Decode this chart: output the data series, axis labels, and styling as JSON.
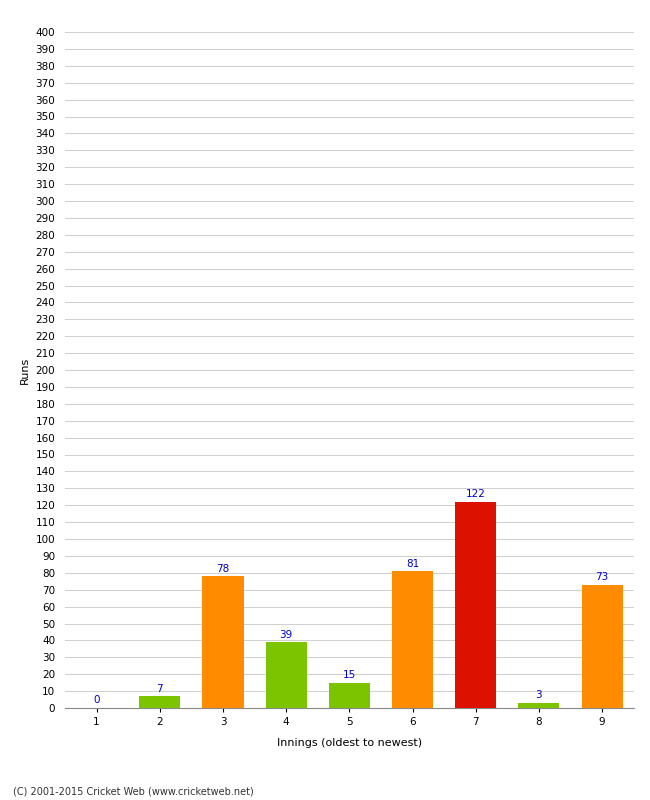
{
  "innings": [
    1,
    2,
    3,
    4,
    5,
    6,
    7,
    8,
    9
  ],
  "values": [
    0,
    7,
    78,
    39,
    15,
    81,
    122,
    3,
    73
  ],
  "bar_colors": [
    "#ff8c00",
    "#7dc400",
    "#ff8c00",
    "#7dc400",
    "#7dc400",
    "#ff8c00",
    "#dd1100",
    "#7dc400",
    "#ff8c00"
  ],
  "xlabel": "Innings (oldest to newest)",
  "ylabel": "Runs",
  "ylim": [
    0,
    400
  ],
  "ytick_step": 10,
  "label_color": "#0000cc",
  "background_color": "#ffffff",
  "grid_color": "#c8c8c8",
  "footer": "(C) 2001-2015 Cricket Web (www.cricketweb.net)",
  "bar_width": 0.65,
  "label_fontsize": 7.5,
  "tick_fontsize": 7.5,
  "axis_label_fontsize": 8,
  "footer_fontsize": 7
}
